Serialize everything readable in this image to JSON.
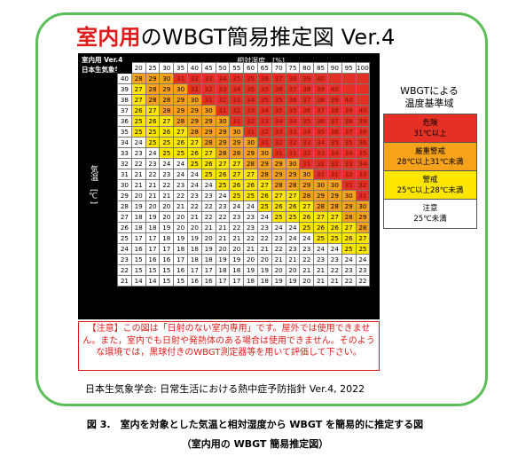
{
  "title": {
    "highlight": "室内用",
    "rest": "のWBGT簡易推定図 Ver.4"
  },
  "chart_label": {
    "line1": "室内用 Ver.4",
    "line2": "日本生気象学会"
  },
  "humidity_axis_label": "相対湿度　[%]",
  "temperature_axis_label": "気温　[℃]",
  "chart_data": {
    "type": "table",
    "humidity": [
      20,
      25,
      30,
      35,
      40,
      45,
      50,
      55,
      60,
      65,
      70,
      75,
      80,
      85,
      90,
      95,
      100
    ],
    "temperature": [
      40,
      39,
      38,
      37,
      36,
      35,
      34,
      33,
      32,
      31,
      30,
      29,
      28,
      27,
      26,
      25,
      24,
      23,
      22,
      21
    ],
    "wbgt": [
      [
        28,
        29,
        30,
        31,
        32,
        33,
        34,
        35,
        35,
        36,
        37,
        38,
        39,
        40,
        null,
        null,
        null
      ],
      [
        27,
        28,
        29,
        30,
        31,
        32,
        33,
        34,
        35,
        35,
        36,
        37,
        38,
        39,
        40,
        null,
        null
      ],
      [
        27,
        28,
        28,
        29,
        30,
        31,
        32,
        33,
        34,
        35,
        35,
        36,
        37,
        38,
        39,
        40,
        null
      ],
      [
        26,
        27,
        28,
        29,
        29,
        30,
        31,
        32,
        33,
        34,
        35,
        35,
        36,
        37,
        38,
        39,
        40
      ],
      [
        25,
        26,
        27,
        28,
        29,
        29,
        30,
        31,
        32,
        33,
        34,
        34,
        35,
        36,
        37,
        38,
        39
      ],
      [
        25,
        25,
        26,
        27,
        28,
        29,
        29,
        30,
        31,
        32,
        33,
        33,
        34,
        35,
        36,
        37,
        38
      ],
      [
        24,
        25,
        25,
        26,
        27,
        28,
        29,
        29,
        30,
        31,
        32,
        32,
        33,
        34,
        35,
        35,
        36
      ],
      [
        23,
        24,
        25,
        25,
        26,
        27,
        28,
        28,
        29,
        30,
        31,
        31,
        32,
        33,
        34,
        34,
        35
      ],
      [
        22,
        23,
        24,
        24,
        25,
        26,
        27,
        27,
        28,
        29,
        29,
        30,
        31,
        32,
        32,
        33,
        34
      ],
      [
        21,
        22,
        23,
        24,
        24,
        25,
        26,
        27,
        27,
        28,
        29,
        29,
        30,
        31,
        31,
        32,
        33
      ],
      [
        21,
        21,
        22,
        23,
        24,
        24,
        25,
        26,
        26,
        27,
        28,
        28,
        29,
        30,
        30,
        31,
        32
      ],
      [
        20,
        21,
        21,
        22,
        23,
        23,
        24,
        25,
        25,
        26,
        27,
        27,
        28,
        29,
        29,
        30,
        31
      ],
      [
        19,
        20,
        20,
        21,
        22,
        22,
        23,
        24,
        24,
        25,
        26,
        26,
        27,
        28,
        28,
        29,
        30
      ],
      [
        18,
        19,
        20,
        20,
        21,
        22,
        22,
        23,
        23,
        24,
        25,
        25,
        26,
        27,
        27,
        28,
        29
      ],
      [
        18,
        18,
        19,
        20,
        20,
        21,
        21,
        22,
        23,
        23,
        24,
        24,
        25,
        26,
        26,
        27,
        28
      ],
      [
        17,
        17,
        18,
        19,
        19,
        20,
        21,
        21,
        22,
        22,
        23,
        24,
        24,
        25,
        25,
        26,
        27
      ],
      [
        16,
        17,
        17,
        18,
        18,
        19,
        20,
        20,
        21,
        21,
        22,
        23,
        23,
        24,
        24,
        25,
        25
      ],
      [
        15,
        16,
        16,
        17,
        18,
        18,
        19,
        19,
        20,
        20,
        21,
        21,
        22,
        23,
        23,
        24,
        24
      ],
      [
        15,
        15,
        15,
        16,
        17,
        17,
        18,
        18,
        19,
        19,
        20,
        20,
        21,
        21,
        22,
        23,
        23
      ],
      [
        14,
        14,
        15,
        15,
        16,
        16,
        17,
        17,
        18,
        18,
        19,
        19,
        20,
        21,
        21,
        22,
        22
      ]
    ],
    "categories": [
      {
        "name": "danger",
        "min": 31,
        "color": "#e53125"
      },
      {
        "name": "severe",
        "min": 28,
        "color": "#f7a21b"
      },
      {
        "name": "warning",
        "min": 25,
        "color": "#ffe600"
      },
      {
        "name": "caution",
        "min": 0,
        "color": "#ffffff"
      }
    ]
  },
  "legend": {
    "title": "WBGTによる\n温度基準域",
    "items": [
      {
        "name": "危険",
        "range": "31℃以上",
        "color": "#e53125"
      },
      {
        "name": "厳重警戒",
        "range": "28℃以上31℃未満",
        "color": "#f7a21b"
      },
      {
        "name": "警戒",
        "range": "25℃以上28℃未満",
        "color": "#ffe600"
      },
      {
        "name": "注意",
        "range": "25℃未満",
        "color": "#ffffff"
      }
    ]
  },
  "notice": "【注意】この図は「日射のない室内専用」です。屋外では使用できません。また，室内でも日射や発熱体のある場合は使用できません。そのような環境では，黒球付きのWBGT測定器等を用いて評価して下さい。",
  "credit": "日本生気象学会: 日常生活における熱中症予防指針 Ver.4, 2022",
  "figure_caption": {
    "line1": "図 3.　室内を対象とした気温と相対湿度から WBGT を簡易的に推定する図",
    "line2": "（室内用の WBGT 簡易推定図）"
  }
}
